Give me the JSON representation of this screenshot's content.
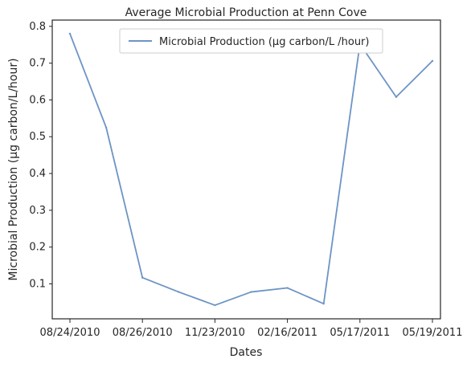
{
  "chart_data": {
    "type": "line",
    "title": "Average Microbial Production at Penn Cove",
    "xlabel": "Dates",
    "ylabel": "Microbial Production (µg carbon/L/hour)",
    "x": [
      "08/24/2010",
      "08/25/2010",
      "08/26/2010",
      "08/27/2010",
      "11/23/2010",
      "11/24/2010",
      "02/16/2011",
      "02/17/2011",
      "05/17/2011",
      "05/18/2011",
      "05/19/2011"
    ],
    "series": [
      {
        "name": "Microbial Production (µg carbon/L /hour)",
        "values": [
          0.78,
          0.525,
          0.117,
          0.078,
          0.042,
          0.078,
          0.089,
          0.046,
          0.752,
          0.608,
          0.706
        ],
        "color": "#6d94c4"
      }
    ],
    "xticks": [
      {
        "index": 0,
        "label": "08/24/2010"
      },
      {
        "index": 2,
        "label": "08/26/2010"
      },
      {
        "index": 4,
        "label": "11/23/2010"
      },
      {
        "index": 6,
        "label": "02/16/2011"
      },
      {
        "index": 8,
        "label": "05/17/2011"
      },
      {
        "index": 10,
        "label": "05/19/2011"
      }
    ],
    "yticks": [
      0.1,
      0.2,
      0.3,
      0.4,
      0.5,
      0.6,
      0.7,
      0.8
    ],
    "ylim": [
      0.005,
      0.817
    ],
    "grid": false,
    "legend_position": "top-center"
  }
}
